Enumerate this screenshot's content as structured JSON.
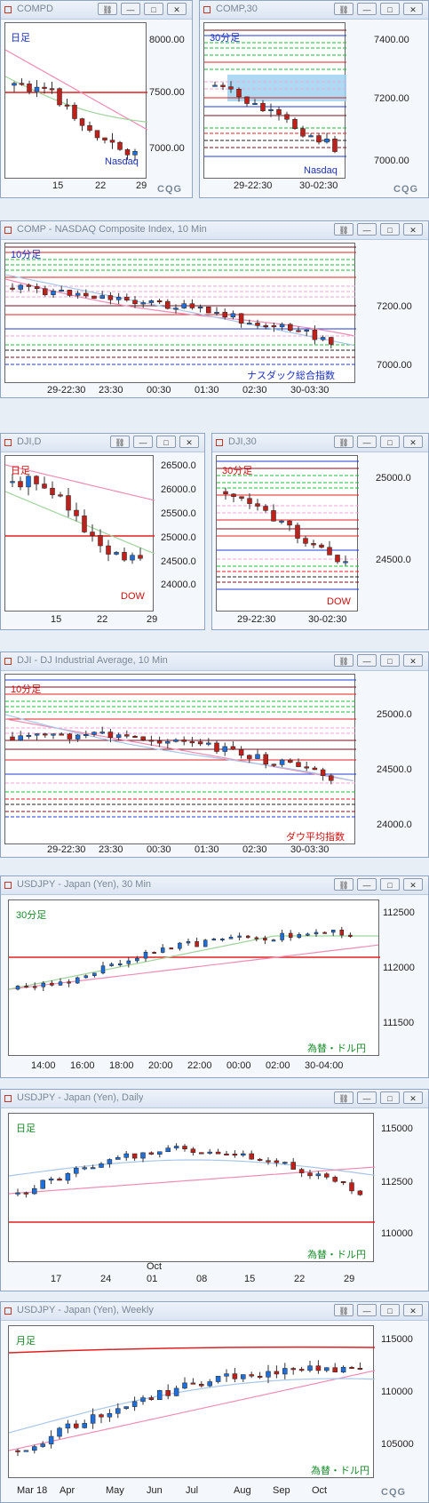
{
  "buttons": {
    "link": "⛓",
    "minimize": "—",
    "maximize": "□",
    "close": "✕"
  },
  "brand": "CQG",
  "colors": {
    "up": "#1e6fd9",
    "down": "#c0201a",
    "label_blue": "#1a2fc0",
    "label_red": "#d01010",
    "label_green": "#178a2a",
    "ma_pink": "#f08cb4",
    "ma_green": "#9fd39b",
    "ma_blue": "#a7c6e8",
    "line_red": "#e02020",
    "line_blue": "#1f3bd6",
    "line_green": "#1fb83a",
    "line_maroon": "#7a1020",
    "line_pink": "#f2a6d8",
    "line_black": "#222"
  },
  "panels": {
    "comp_daily": {
      "title": "COMPD",
      "tag": "日足",
      "name": "Nasdaq",
      "yticks": [
        "8000.00",
        "7500.00",
        "7000.00"
      ],
      "xticks": [
        "15",
        "22",
        "29"
      ]
    },
    "comp_30": {
      "title": "COMP,30",
      "tag": "30分足",
      "name": "Nasdaq",
      "yticks": [
        "7400.00",
        "7200.00",
        "7000.00"
      ],
      "xticks": [
        "29-22:30",
        "30-02:30"
      ]
    },
    "comp_10": {
      "title": "COMP - NASDAQ Composite Index, 10 Min",
      "tag": "10分足",
      "name": "ナスダック総合指数",
      "yticks": [
        "7200.00",
        "7000.00"
      ],
      "xticks": [
        "29-22:30",
        "23:30",
        "00:30",
        "01:30",
        "02:30",
        "30-03:30"
      ]
    },
    "dji_daily": {
      "title": "DJI,D",
      "tag": "日足",
      "name": "DOW",
      "yticks": [
        "26500.0",
        "26000.0",
        "25500.0",
        "25000.0",
        "24500.0",
        "24000.0"
      ],
      "xticks": [
        "15",
        "22",
        "29"
      ]
    },
    "dji_30": {
      "title": "DJI,30",
      "tag": "30分足",
      "name": "DOW",
      "yticks": [
        "25000.0",
        "24500.0"
      ],
      "xticks": [
        "29-22:30",
        "30-02:30"
      ]
    },
    "dji_10": {
      "title": "DJI - DJ Industrial Average, 10 Min",
      "tag": "10分足",
      "name": "ダウ平均指数",
      "yticks": [
        "25000.0",
        "24500.0",
        "24000.0"
      ],
      "xticks": [
        "29-22:30",
        "23:30",
        "00:30",
        "01:30",
        "02:30",
        "30-03:30"
      ]
    },
    "usd_30": {
      "title": "USDJPY - Japan (Yen), 30 Min",
      "tag": "30分足",
      "name": "為替・ドル円",
      "yticks": [
        "112500",
        "112000",
        "111500"
      ],
      "xticks": [
        "14:00",
        "16:00",
        "18:00",
        "20:00",
        "22:00",
        "00:00",
        "02:00",
        "30-04:00"
      ]
    },
    "usd_daily": {
      "title": "USDJPY - Japan (Yen), Daily",
      "tag": "日足",
      "name": "為替・ドル円",
      "yticks": [
        "115000",
        "112500",
        "110000"
      ],
      "xticks": [
        "17",
        "24",
        "01",
        "08",
        "15",
        "22",
        "29"
      ],
      "month": "Oct"
    },
    "usd_weekly": {
      "title": "USDJPY - Japan (Yen), Weekly",
      "tag": "月足",
      "name": "為替・ドル円",
      "yticks": [
        "115000",
        "110000",
        "105000"
      ],
      "xticks": [
        "Mar 18",
        "Apr",
        "May",
        "Jun",
        "Jul",
        "Aug",
        "Sep",
        "Oct"
      ]
    }
  }
}
